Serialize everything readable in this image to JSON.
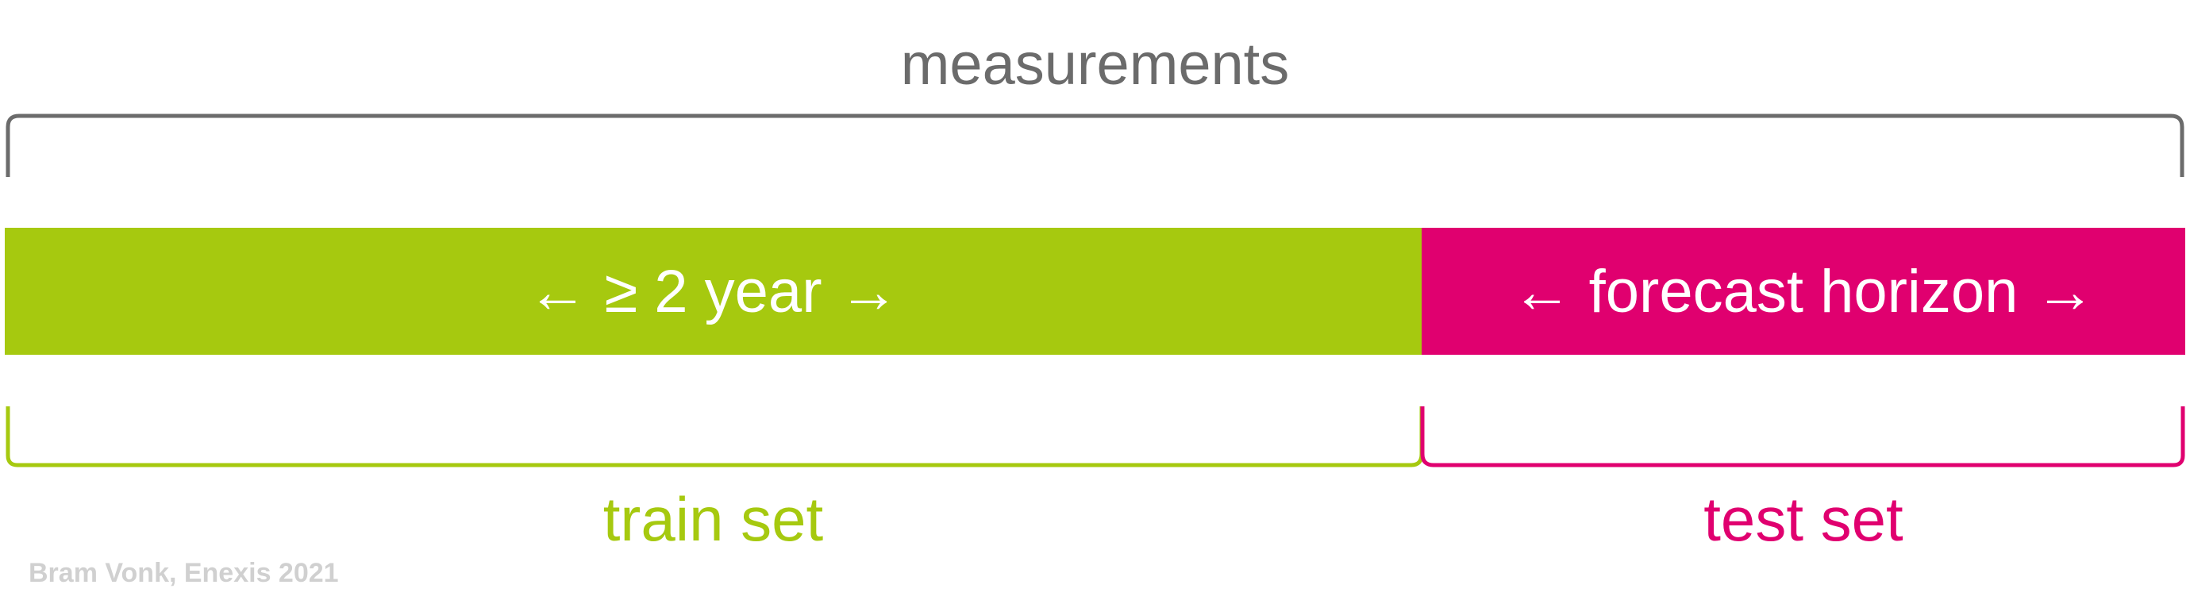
{
  "title": "measurements",
  "train": {
    "bar_text": "← ≥ 2 year →",
    "label": "train set",
    "color": "#a6c90f"
  },
  "test": {
    "bar_text": "← forecast horizon →",
    "label": "test set",
    "color": "#e0006f"
  },
  "bracket_color": "#6b6b6b",
  "credit": "Bram Vonk, Enexis 2021"
}
